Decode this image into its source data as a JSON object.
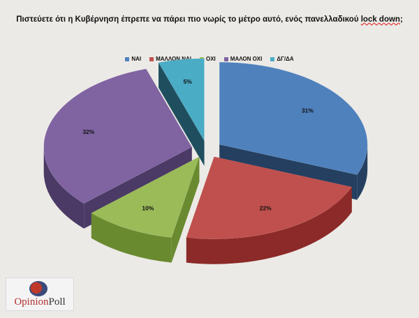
{
  "title": {
    "main": "Πιστεύετε ότι η Κυβέρνηση έπρεπε να πάρει πιο νωρίς το μέτρο αυτό, ενός πανελλαδικού ",
    "squiggle": "lock down",
    "end": ";"
  },
  "logo": {
    "opinion": "Opinion",
    "poll": "Poll"
  },
  "chart_data": {
    "type": "pie",
    "title": "Πιστεύετε ότι η Κυβέρνηση έπρεπε να πάρει πιο νωρίς το μέτρο αυτό, ενός πανελλαδικού lock down;",
    "legend_position": "top",
    "slices": [
      {
        "label": "ΝΑΙ",
        "value": 31,
        "display": "31%",
        "color": "#4f81bd",
        "side_color": "#243f60"
      },
      {
        "label": "ΜΑΛΛΟΝ ΝΑΙ",
        "value": 22,
        "display": "22%",
        "color": "#c0504d",
        "side_color": "#8b2a28"
      },
      {
        "label": "ΟΧΙ",
        "value": 10,
        "display": "10%",
        "color": "#9bbb59",
        "side_color": "#6a8a30"
      },
      {
        "label": "ΜΑΛΟΝ ΟΧΙ",
        "value": 32,
        "display": "32%",
        "color": "#8064a2",
        "side_color": "#4a3a65"
      },
      {
        "label": "ΔΓ/ΔΑ",
        "value": 5,
        "display": "5%",
        "color": "#4bacc6",
        "side_color": "#1f4f5e"
      }
    ]
  }
}
